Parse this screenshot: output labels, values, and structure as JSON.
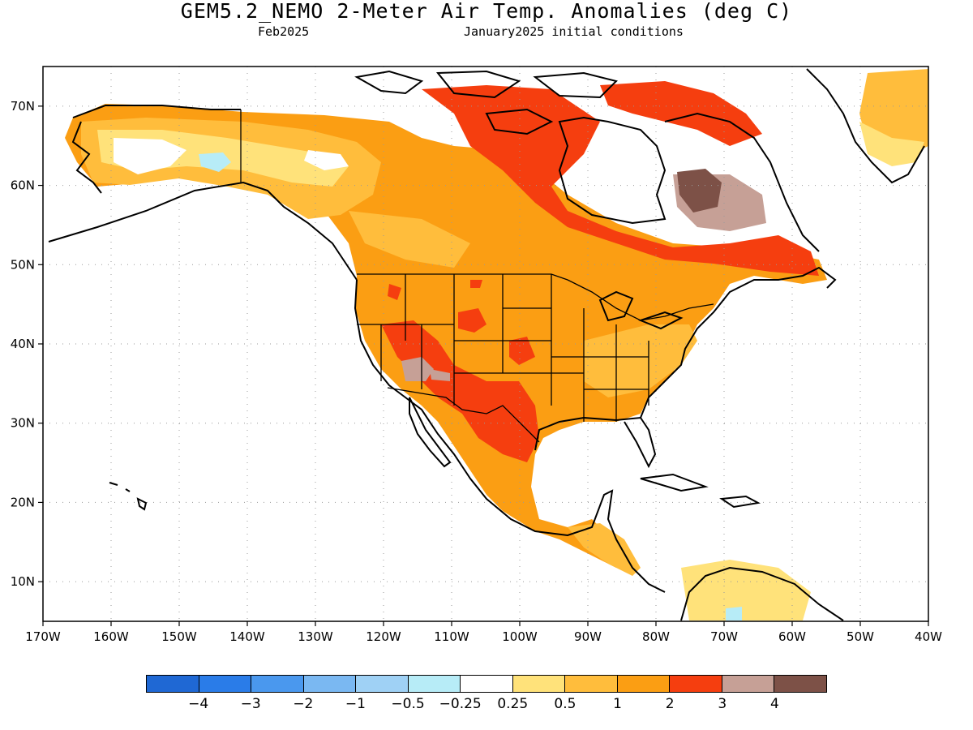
{
  "title": "GEM5.2_NEMO 2-Meter Air Temp. Anomalies (deg C)",
  "subtitle_left": "Feb2025",
  "subtitle_right": "January2025 initial conditions",
  "axes": {
    "lon_range": [
      -170,
      -40
    ],
    "lat_range": [
      5,
      75
    ],
    "lon_ticks": [
      {
        "value": -170,
        "label": "170W"
      },
      {
        "value": -160,
        "label": "160W"
      },
      {
        "value": -150,
        "label": "150W"
      },
      {
        "value": -140,
        "label": "140W"
      },
      {
        "value": -130,
        "label": "130W"
      },
      {
        "value": -120,
        "label": "120W"
      },
      {
        "value": -110,
        "label": "110W"
      },
      {
        "value": -100,
        "label": "100W"
      },
      {
        "value": -90,
        "label": "90W"
      },
      {
        "value": -80,
        "label": "80W"
      },
      {
        "value": -70,
        "label": "70W"
      },
      {
        "value": -60,
        "label": "60W"
      },
      {
        "value": -50,
        "label": "50W"
      },
      {
        "value": -40,
        "label": "40W"
      }
    ],
    "lat_ticks": [
      {
        "value": 10,
        "label": "10N"
      },
      {
        "value": 20,
        "label": "20N"
      },
      {
        "value": 30,
        "label": "30N"
      },
      {
        "value": 40,
        "label": "40N"
      },
      {
        "value": 50,
        "label": "50N"
      },
      {
        "value": 60,
        "label": "60N"
      },
      {
        "value": 70,
        "label": "70N"
      }
    ],
    "grid": true
  },
  "colorbar": {
    "colors": [
      "#1f68d4",
      "#2a7ce8",
      "#4a98ee",
      "#7ab8f2",
      "#9fd1f5",
      "#b7ecf7",
      "#ffffff",
      "#ffe27a",
      "#ffbd3c",
      "#fb9e13",
      "#f53e0f",
      "#c6a096",
      "#7d5147"
    ],
    "labels": [
      "−4",
      "−3",
      "−2",
      "−1",
      "−0.5",
      "−0.25",
      "0.25",
      "0.5",
      "1",
      "2",
      "3",
      "4"
    ]
  },
  "colors": {
    "warm_light": "#ffe27a",
    "warm_mid": "#ffbd3c",
    "warm_orange": "#fb9e13",
    "red": "#f53e0f",
    "tan": "#c6a096",
    "brown": "#7d5147",
    "cool": "#b7ecf7"
  }
}
